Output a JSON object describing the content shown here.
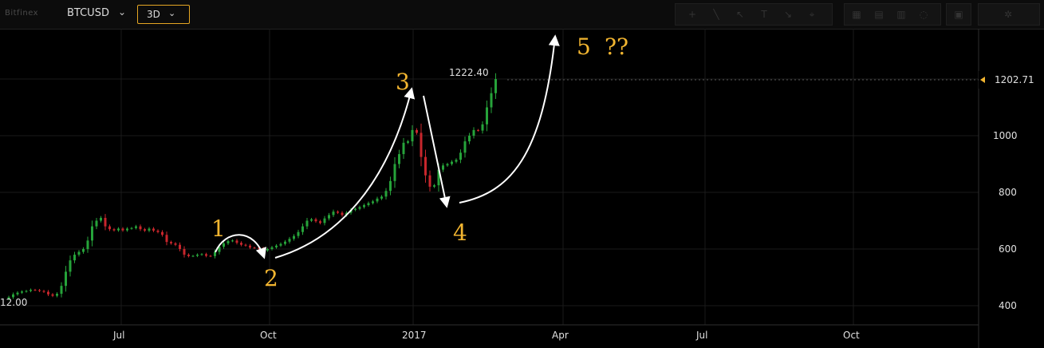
{
  "toolbar": {
    "exchange": "Bitfinex",
    "symbol": "BTCUSD",
    "interval": "3D",
    "icons": [
      "plus-icon",
      "line-tool-icon",
      "arrow-tool-icon",
      "text-tool-icon",
      "measure-icon",
      "cursor-icon",
      "layout-icon",
      "compare-icon",
      "indicator-icon",
      "template-icon",
      "snapshot-icon",
      "settings-icon"
    ]
  },
  "chart_data": {
    "type": "candlestick",
    "title": "",
    "xlabel": "",
    "ylabel": "",
    "ylim": [
      375,
      1330
    ],
    "y_ticks": [
      "1000",
      "800",
      "600",
      "400"
    ],
    "x_ticks": [
      "Jul",
      "Oct",
      "2017",
      "Apr",
      "Jul",
      "Oct"
    ],
    "current_price": "1202.71",
    "high_label": "1222.40",
    "left_label": "12.00",
    "colors": {
      "up": "#26a33a",
      "down": "#c8262c",
      "label": "#f2b530",
      "grid": "#1a1a1a",
      "arrow": "#ffffff"
    },
    "close_series": [
      424,
      430,
      440,
      446,
      450,
      452,
      456,
      455,
      452,
      449,
      440,
      435,
      442,
      470,
      520,
      560,
      580,
      590,
      600,
      630,
      680,
      700,
      710,
      680,
      670,
      666,
      672,
      666,
      672,
      674,
      680,
      670,
      665,
      672,
      665,
      660,
      650,
      625,
      620,
      615,
      600,
      580,
      575,
      576,
      580,
      582,
      576,
      575,
      590,
      608,
      620,
      628,
      630,
      622,
      615,
      612,
      605,
      604,
      602,
      595,
      600,
      606,
      612,
      618,
      626,
      636,
      646,
      660,
      680,
      700,
      705,
      698,
      692,
      708,
      720,
      732,
      728,
      720,
      728,
      738,
      742,
      748,
      755,
      762,
      768,
      778,
      785,
      805,
      840,
      900,
      935,
      975,
      980,
      1020,
      1010,
      925,
      860,
      820,
      825,
      880,
      895,
      900,
      908,
      915,
      940,
      980,
      1000,
      1020,
      1018,
      1040,
      1100,
      1150,
      1200
    ],
    "annotations": [
      "1",
      "2",
      "3",
      "4",
      "5",
      "??"
    ]
  }
}
